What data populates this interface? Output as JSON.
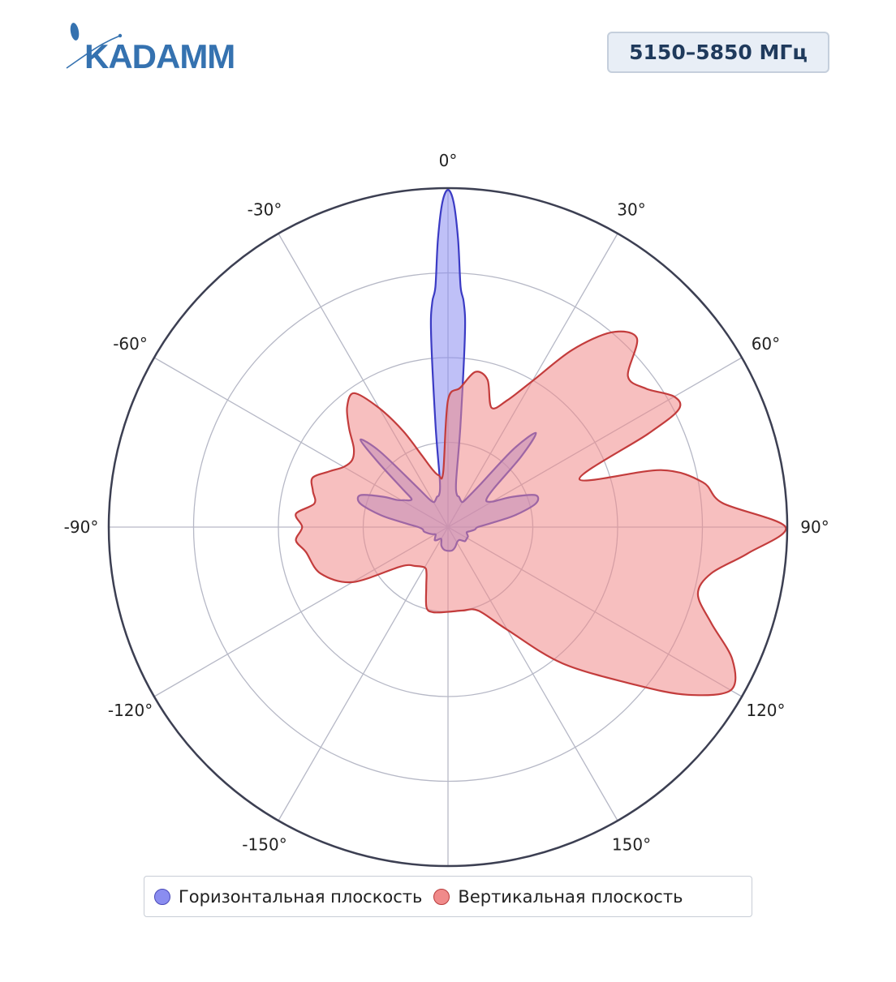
{
  "brand": {
    "logo_text": "KADAMM",
    "colors": {
      "logo": "#3572b0"
    }
  },
  "badge": {
    "frequency": "5150–5850 МГц"
  },
  "chart_data": {
    "type": "polar-area",
    "angular_ticks": [
      "0°",
      "30°",
      "60°",
      "90°",
      "120°",
      "150°",
      "-150°",
      "-120°",
      "-90°",
      "-60°",
      "-30°"
    ],
    "angular_tick_values": [
      0,
      30,
      60,
      90,
      120,
      150,
      -150,
      -120,
      -90,
      -60,
      -30
    ],
    "radial_range": [
      0,
      4
    ],
    "radial_gridlines": [
      1,
      2,
      3,
      4
    ],
    "grid": true,
    "legend_position": "bottom",
    "series": [
      {
        "name": "Горизонтальная плоскость",
        "color": "#3b3bc4",
        "fill": "#8a8df0",
        "angles": [
          -180,
          -170,
          -160,
          -150,
          -140,
          -135,
          -130,
          -125,
          -120,
          -115,
          -110,
          -105,
          -100,
          -95,
          -90,
          -85,
          -80,
          -75,
          -70,
          -65,
          -62,
          -58,
          -55,
          -52,
          -50,
          -47,
          -45,
          -42,
          -38,
          -34,
          -30,
          -25,
          -20,
          -15,
          -10,
          -7,
          -5,
          -4,
          -3,
          -2,
          -1,
          0,
          1,
          2,
          3,
          4,
          5,
          7,
          10,
          15,
          20,
          25,
          30,
          33,
          37,
          40,
          43,
          46,
          50,
          55,
          60,
          62,
          65,
          70,
          75,
          80,
          85,
          90,
          95,
          100,
          105,
          110,
          115,
          120,
          125,
          130,
          135,
          140,
          150,
          160,
          170
        ],
        "values": [
          0.28,
          0.27,
          0.23,
          0.16,
          0.2,
          0.22,
          0.2,
          0.18,
          0.17,
          0.2,
          0.23,
          0.26,
          0.29,
          0.3,
          0.35,
          0.5,
          0.8,
          1.07,
          1.1,
          0.85,
          0.68,
          0.6,
          0.55,
          0.55,
          0.7,
          1.15,
          1.46,
          1.2,
          0.62,
          0.4,
          0.34,
          0.35,
          0.38,
          0.4,
          0.55,
          1.2,
          2.3,
          2.66,
          2.84,
          3.4,
          3.83,
          3.98,
          3.83,
          3.4,
          2.84,
          2.66,
          2.3,
          1.2,
          0.55,
          0.4,
          0.38,
          0.35,
          0.34,
          0.4,
          0.62,
          1.2,
          1.52,
          1.2,
          0.7,
          0.55,
          0.6,
          0.68,
          0.85,
          1.1,
          1.07,
          0.8,
          0.5,
          0.35,
          0.32,
          0.27,
          0.23,
          0.24,
          0.26,
          0.26,
          0.26,
          0.26,
          0.22,
          0.2,
          0.21,
          0.25,
          0.28
        ]
      },
      {
        "name": "Вертикальная плоскость",
        "color": "#c33c3c",
        "fill": "#f08a8a",
        "angles": [
          -180,
          -170,
          -165,
          -160,
          -155,
          -150,
          -140,
          -130,
          -120,
          -110,
          -100,
          -95,
          -90,
          -85,
          -80,
          -75,
          -70,
          -65,
          -60,
          -55,
          -50,
          -45,
          -40,
          -35,
          -30,
          -25,
          -20,
          -15,
          -10,
          -5,
          0,
          5,
          10,
          15,
          20,
          25,
          30,
          35,
          40,
          45,
          50,
          55,
          60,
          63,
          65,
          70,
          75,
          80,
          85,
          90,
          95,
          100,
          105,
          110,
          115,
          120,
          125,
          130,
          140,
          150,
          160,
          170
        ],
        "values": [
          1.0,
          1.02,
          0.98,
          0.75,
          0.6,
          0.55,
          0.6,
          0.72,
          1.3,
          1.6,
          1.7,
          1.8,
          1.72,
          1.8,
          1.6,
          1.65,
          1.7,
          1.55,
          1.42,
          1.38,
          1.45,
          1.65,
          1.85,
          1.93,
          1.62,
          1.25,
          0.9,
          0.7,
          0.62,
          0.65,
          1.5,
          1.65,
          1.86,
          1.8,
          1.5,
          1.65,
          1.99,
          2.55,
          3.0,
          3.15,
          2.77,
          2.85,
          3.08,
          3.05,
          2.6,
          1.65,
          2.6,
          3.05,
          3.25,
          3.98,
          3.55,
          3.15,
          3.05,
          3.3,
          3.7,
          3.85,
          3.45,
          2.9,
          2.1,
          1.4,
          1.05,
          1.0
        ]
      }
    ]
  },
  "legend": {
    "items": [
      {
        "label": "Горизонтальная плоскость",
        "fill": "#8a8df0",
        "stroke": "#4a4ab8"
      },
      {
        "label": "Вертикальная плоскость",
        "fill": "#f08a8a",
        "stroke": "#b83c3c"
      }
    ]
  }
}
